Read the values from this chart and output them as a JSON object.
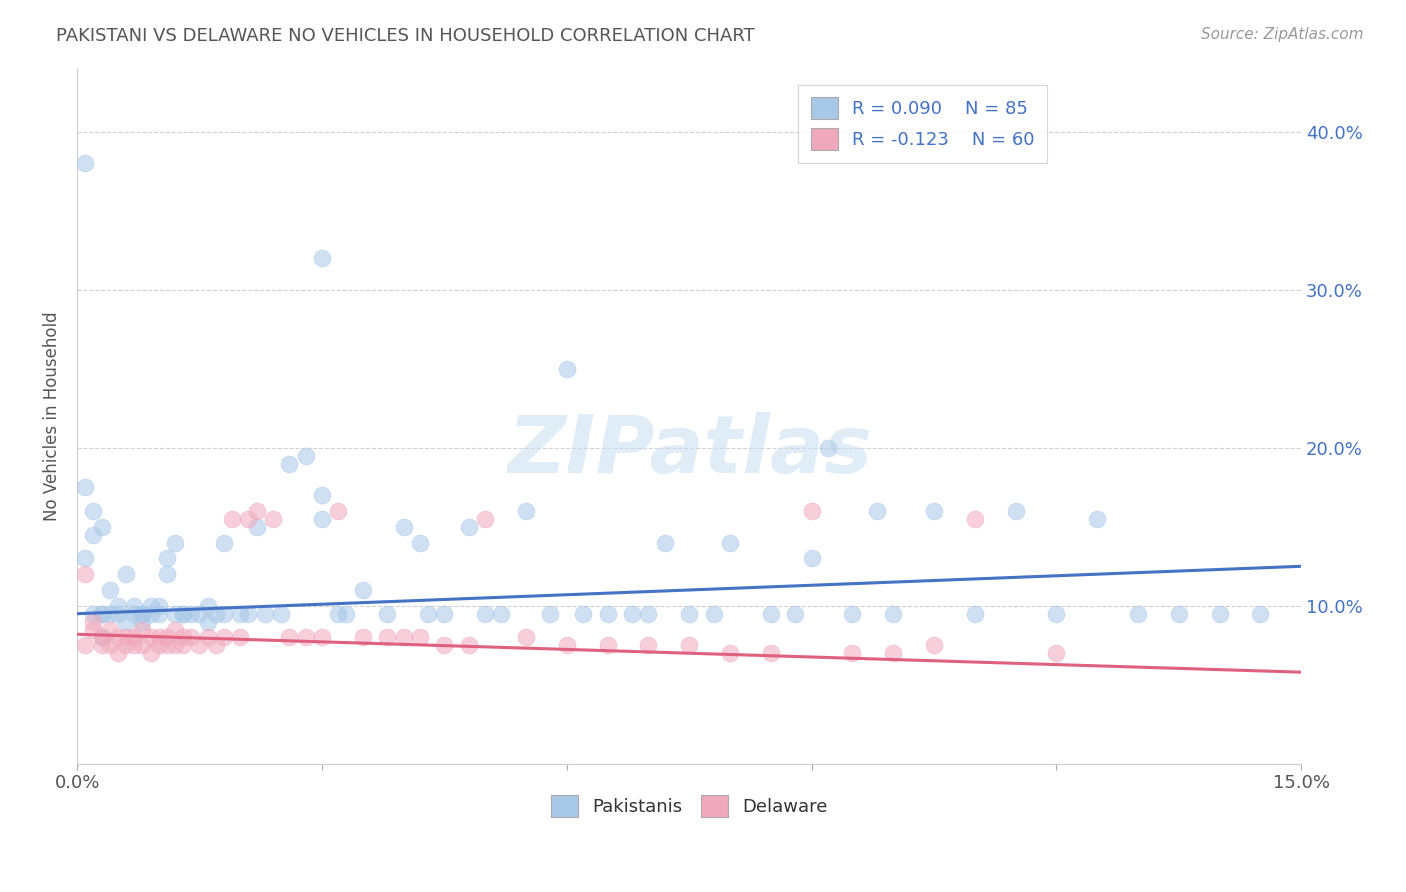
{
  "title": "PAKISTANI VS DELAWARE NO VEHICLES IN HOUSEHOLD CORRELATION CHART",
  "source": "Source: ZipAtlas.com",
  "ylabel_label": "No Vehicles in Household",
  "xlim": [
    0.0,
    0.15
  ],
  "ylim": [
    0.0,
    0.44
  ],
  "legend_blue_label": "Pakistanis",
  "legend_pink_label": "Delaware",
  "legend_blue_r": "R = 0.090",
  "legend_blue_n": "N = 85",
  "legend_pink_r": "R = -0.123",
  "legend_pink_n": "N = 60",
  "blue_color": "#A8C8E8",
  "pink_color": "#F0A8BC",
  "blue_line_color": "#4472C4",
  "pink_line_color": "#E06080",
  "watermark": "ZIPatlas",
  "ytick_vals": [
    0.0,
    0.1,
    0.2,
    0.3,
    0.4
  ],
  "ytick_labels": [
    "",
    "10.0%",
    "20.0%",
    "30.0%",
    "40.0%"
  ],
  "xtick_vals": [
    0.0,
    0.03,
    0.06,
    0.09,
    0.12,
    0.15
  ],
  "xtick_labels": [
    "0.0%",
    "",
    "",
    "",
    "",
    "15.0%"
  ],
  "blue_trend_x": [
    0.0,
    0.15
  ],
  "blue_trend_y": [
    0.095,
    0.125
  ],
  "pink_trend_x": [
    0.0,
    0.15
  ],
  "pink_trend_y": [
    0.082,
    0.058
  ],
  "blue_scatter": [
    [
      0.001,
      0.38
    ],
    [
      0.002,
      0.16
    ],
    [
      0.003,
      0.15
    ],
    [
      0.001,
      0.13
    ],
    [
      0.002,
      0.145
    ],
    [
      0.001,
      0.175
    ],
    [
      0.002,
      0.095
    ],
    [
      0.003,
      0.095
    ],
    [
      0.003,
      0.08
    ],
    [
      0.004,
      0.095
    ],
    [
      0.004,
      0.11
    ],
    [
      0.005,
      0.1
    ],
    [
      0.005,
      0.095
    ],
    [
      0.006,
      0.12
    ],
    [
      0.006,
      0.09
    ],
    [
      0.007,
      0.1
    ],
    [
      0.007,
      0.095
    ],
    [
      0.008,
      0.095
    ],
    [
      0.008,
      0.09
    ],
    [
      0.009,
      0.1
    ],
    [
      0.009,
      0.095
    ],
    [
      0.01,
      0.1
    ],
    [
      0.01,
      0.095
    ],
    [
      0.011,
      0.13
    ],
    [
      0.011,
      0.12
    ],
    [
      0.012,
      0.14
    ],
    [
      0.012,
      0.095
    ],
    [
      0.013,
      0.095
    ],
    [
      0.013,
      0.095
    ],
    [
      0.014,
      0.095
    ],
    [
      0.015,
      0.095
    ],
    [
      0.016,
      0.09
    ],
    [
      0.016,
      0.1
    ],
    [
      0.017,
      0.095
    ],
    [
      0.018,
      0.14
    ],
    [
      0.018,
      0.095
    ],
    [
      0.02,
      0.095
    ],
    [
      0.021,
      0.095
    ],
    [
      0.022,
      0.15
    ],
    [
      0.023,
      0.095
    ],
    [
      0.025,
      0.095
    ],
    [
      0.026,
      0.19
    ],
    [
      0.028,
      0.195
    ],
    [
      0.03,
      0.17
    ],
    [
      0.03,
      0.155
    ],
    [
      0.032,
      0.095
    ],
    [
      0.033,
      0.095
    ],
    [
      0.035,
      0.11
    ],
    [
      0.038,
      0.095
    ],
    [
      0.04,
      0.15
    ],
    [
      0.042,
      0.14
    ],
    [
      0.043,
      0.095
    ],
    [
      0.045,
      0.095
    ],
    [
      0.048,
      0.15
    ],
    [
      0.05,
      0.095
    ],
    [
      0.052,
      0.095
    ],
    [
      0.055,
      0.16
    ],
    [
      0.058,
      0.095
    ],
    [
      0.06,
      0.25
    ],
    [
      0.062,
      0.095
    ],
    [
      0.065,
      0.095
    ],
    [
      0.068,
      0.095
    ],
    [
      0.07,
      0.095
    ],
    [
      0.072,
      0.14
    ],
    [
      0.075,
      0.095
    ],
    [
      0.078,
      0.095
    ],
    [
      0.08,
      0.14
    ],
    [
      0.085,
      0.095
    ],
    [
      0.088,
      0.095
    ],
    [
      0.09,
      0.13
    ],
    [
      0.092,
      0.2
    ],
    [
      0.095,
      0.095
    ],
    [
      0.098,
      0.16
    ],
    [
      0.1,
      0.095
    ],
    [
      0.105,
      0.16
    ],
    [
      0.11,
      0.095
    ],
    [
      0.115,
      0.16
    ],
    [
      0.12,
      0.095
    ],
    [
      0.125,
      0.155
    ],
    [
      0.13,
      0.095
    ],
    [
      0.135,
      0.095
    ],
    [
      0.14,
      0.095
    ],
    [
      0.145,
      0.095
    ],
    [
      0.008,
      0.095
    ],
    [
      0.003,
      0.095
    ],
    [
      0.03,
      0.32
    ]
  ],
  "pink_scatter": [
    [
      0.001,
      0.12
    ],
    [
      0.001,
      0.075
    ],
    [
      0.002,
      0.09
    ],
    [
      0.002,
      0.085
    ],
    [
      0.003,
      0.08
    ],
    [
      0.003,
      0.075
    ],
    [
      0.004,
      0.085
    ],
    [
      0.004,
      0.075
    ],
    [
      0.005,
      0.08
    ],
    [
      0.005,
      0.07
    ],
    [
      0.006,
      0.08
    ],
    [
      0.006,
      0.075
    ],
    [
      0.007,
      0.08
    ],
    [
      0.007,
      0.075
    ],
    [
      0.008,
      0.085
    ],
    [
      0.008,
      0.075
    ],
    [
      0.009,
      0.08
    ],
    [
      0.009,
      0.07
    ],
    [
      0.01,
      0.08
    ],
    [
      0.01,
      0.075
    ],
    [
      0.011,
      0.08
    ],
    [
      0.011,
      0.075
    ],
    [
      0.012,
      0.085
    ],
    [
      0.012,
      0.075
    ],
    [
      0.013,
      0.08
    ],
    [
      0.013,
      0.075
    ],
    [
      0.014,
      0.08
    ],
    [
      0.015,
      0.075
    ],
    [
      0.016,
      0.08
    ],
    [
      0.017,
      0.075
    ],
    [
      0.018,
      0.08
    ],
    [
      0.019,
      0.155
    ],
    [
      0.02,
      0.08
    ],
    [
      0.021,
      0.155
    ],
    [
      0.022,
      0.16
    ],
    [
      0.024,
      0.155
    ],
    [
      0.026,
      0.08
    ],
    [
      0.028,
      0.08
    ],
    [
      0.03,
      0.08
    ],
    [
      0.032,
      0.16
    ],
    [
      0.035,
      0.08
    ],
    [
      0.038,
      0.08
    ],
    [
      0.04,
      0.08
    ],
    [
      0.042,
      0.08
    ],
    [
      0.045,
      0.075
    ],
    [
      0.048,
      0.075
    ],
    [
      0.05,
      0.155
    ],
    [
      0.055,
      0.08
    ],
    [
      0.06,
      0.075
    ],
    [
      0.065,
      0.075
    ],
    [
      0.07,
      0.075
    ],
    [
      0.075,
      0.075
    ],
    [
      0.08,
      0.07
    ],
    [
      0.085,
      0.07
    ],
    [
      0.09,
      0.16
    ],
    [
      0.095,
      0.07
    ],
    [
      0.1,
      0.07
    ],
    [
      0.105,
      0.075
    ],
    [
      0.11,
      0.155
    ],
    [
      0.12,
      0.07
    ]
  ]
}
